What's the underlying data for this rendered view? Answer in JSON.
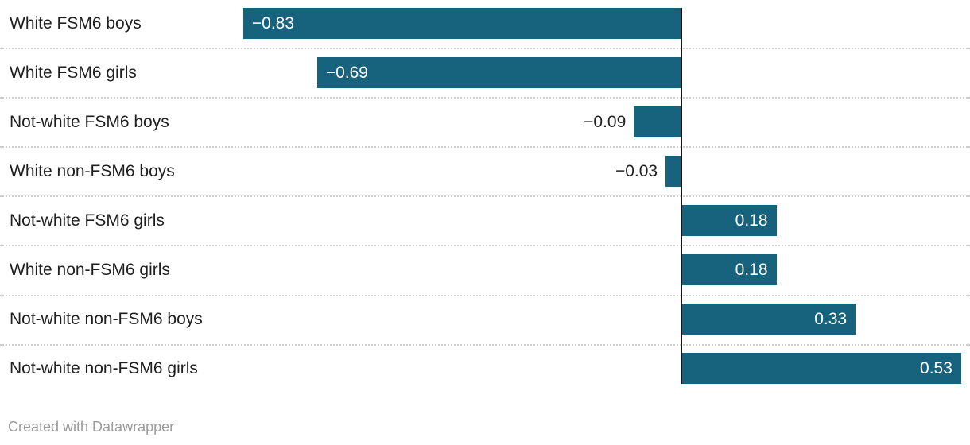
{
  "chart_data": {
    "type": "bar",
    "orientation": "horizontal",
    "title": "",
    "xlabel": "",
    "ylabel": "",
    "categories": [
      "White FSM6 boys",
      "White FSM6 girls",
      "Not-white FSM6 boys",
      "White non-FSM6 boys",
      "Not-white FSM6 girls",
      "White non-FSM6 girls",
      "Not-white non-FSM6 boys",
      "Not-white non-FSM6 girls"
    ],
    "values": [
      -0.83,
      -0.69,
      -0.09,
      -0.03,
      0.18,
      0.18,
      0.33,
      0.53
    ],
    "value_labels": [
      "−0.83",
      "−0.69",
      "−0.09",
      "−0.03",
      "0.18",
      "0.18",
      "0.33",
      "0.53"
    ],
    "xlim": [
      -1.29,
      0.55
    ],
    "grid": "dotted-row-separators",
    "legend": "none",
    "zero_baseline": true,
    "value_label_placement": "inside-end, outside for short bars"
  },
  "colors": {
    "bar": "#17637E",
    "zero_line": "#151515",
    "separator": "#CFCFCF",
    "category_label": "#1F1F1F",
    "value_label_inside": "#FFFFFF",
    "value_label_outside": "#222222",
    "footer_text": "#9B9B9B",
    "background": "#FFFFFF"
  },
  "footer": {
    "text": "Created with Datawrapper"
  }
}
